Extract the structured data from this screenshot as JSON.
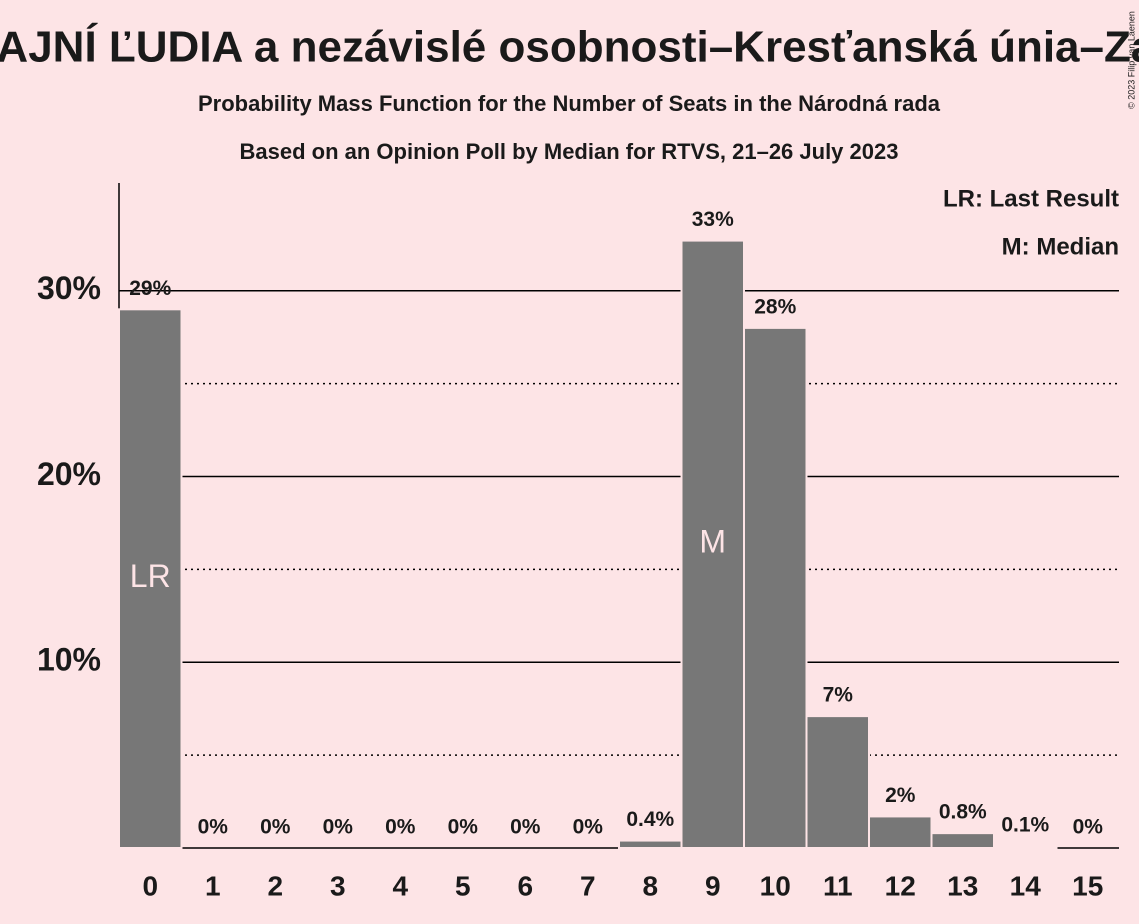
{
  "chart_data": {
    "type": "bar",
    "title": "ČAJNÍ ĽUDIA a nezávislé osobnosti–Kresťanská únia–Za",
    "subtitle": [
      "Probability Mass Function for the Number of Seats in the Národná rada",
      "Based on an Opinion Poll by Median for RTVS, 21–26 July 2023"
    ],
    "copyright": "© 2023 Filip van Laenen",
    "categories": [
      "0",
      "1",
      "2",
      "3",
      "4",
      "5",
      "6",
      "7",
      "8",
      "9",
      "10",
      "11",
      "12",
      "13",
      "14",
      "15"
    ],
    "values": [
      29,
      0,
      0,
      0,
      0,
      0,
      0,
      0,
      0.4,
      32.7,
      28,
      7.1,
      1.7,
      0.8,
      0.1,
      0
    ],
    "value_labels": [
      "29%",
      "0%",
      "0%",
      "0%",
      "0%",
      "0%",
      "0%",
      "0%",
      "0.4%",
      "33%",
      "28%",
      "7%",
      "2%",
      "0.8%",
      "0.1%",
      "0%"
    ],
    "color": "#777777",
    "ylim": [
      0,
      35.8
    ],
    "yticks": [
      {
        "value": 10,
        "label": "10%"
      },
      {
        "value": 20,
        "label": "20%"
      },
      {
        "value": 30,
        "label": "30%"
      }
    ],
    "minor_yticks": [
      5,
      15,
      25
    ],
    "grid": true,
    "markers": [
      {
        "label": "LR",
        "category": "0"
      },
      {
        "label": "M",
        "category": "9"
      }
    ],
    "legend": [
      "LR: Last Result",
      "M: Median"
    ],
    "legend_position": "top-right"
  }
}
